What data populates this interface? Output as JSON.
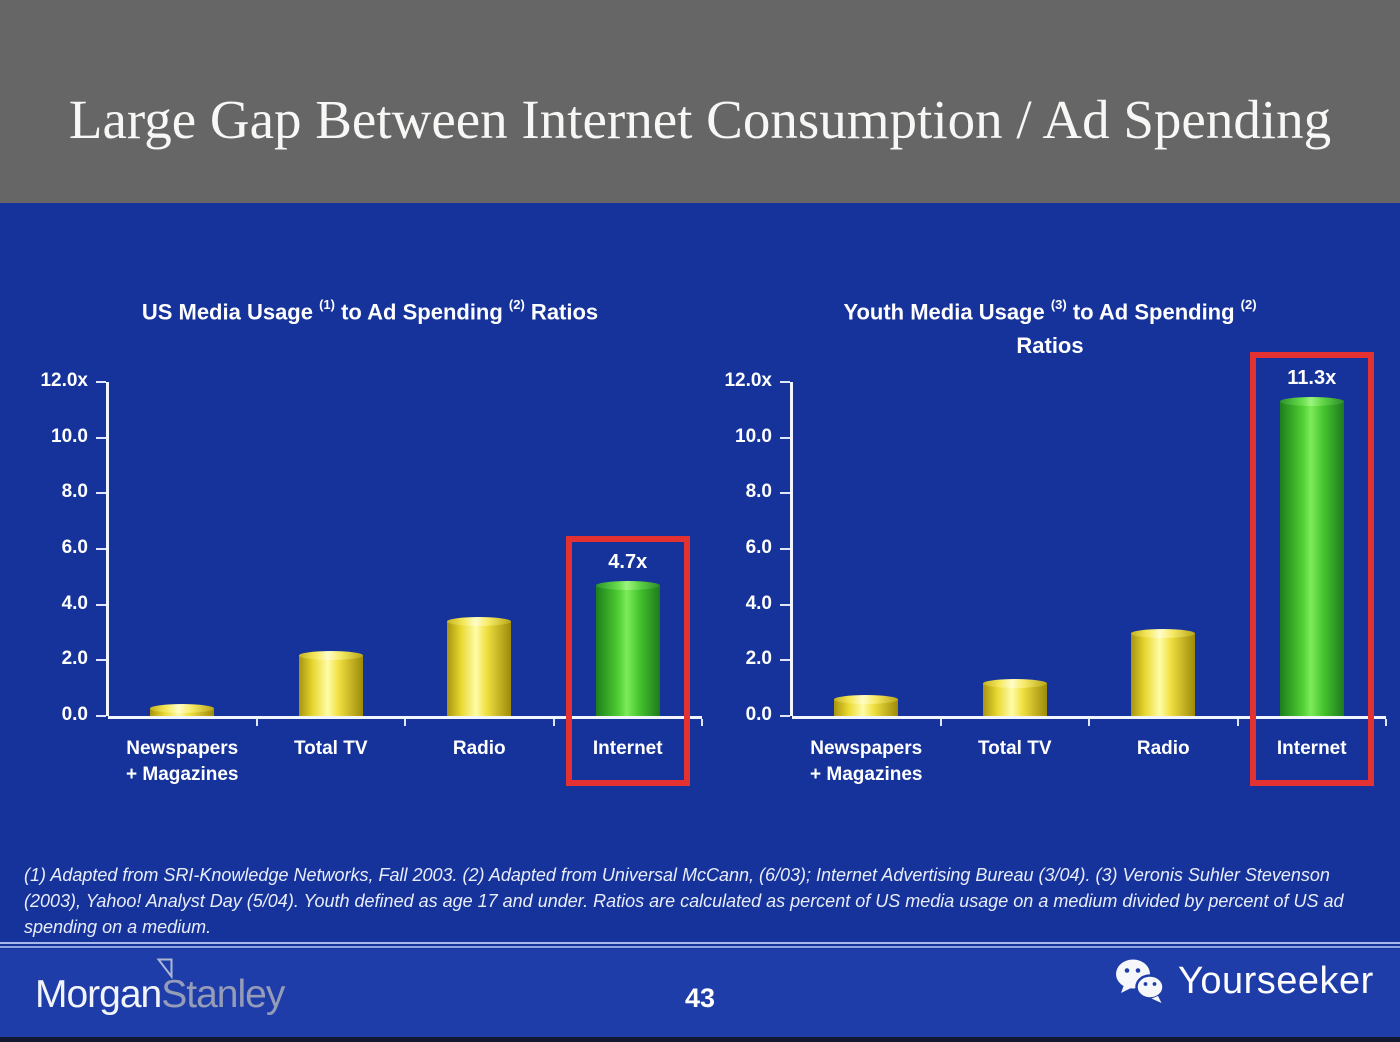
{
  "slide": {
    "title": "Large Gap Between Internet Consumption / Ad Spending",
    "page_number": "43"
  },
  "colors": {
    "header_bg": "#666666",
    "body_bg": "#16339b",
    "footer_bg": "#1e3da8",
    "bar_yellow": "#f0e040",
    "bar_green_highlight": "#4fce32",
    "highlight_red": "#e43131",
    "axis_white": "#f2f5fd"
  },
  "chart_data": [
    {
      "type": "bar",
      "title": "US Media Usage (1) to Ad Spending (2) Ratios",
      "title_segments": [
        {
          "t": "US Media Usage "
        },
        {
          "sup": "(1)"
        },
        {
          "t": " to Ad Spending "
        },
        {
          "sup": "(2)"
        },
        {
          "t": " Ratios"
        }
      ],
      "categories": [
        "Newspapers + Magazines",
        "Total TV",
        "Radio",
        "Internet"
      ],
      "category_label_lines": [
        [
          "Newspapers",
          "+ Magazines"
        ],
        [
          "Total TV"
        ],
        [
          "Radio"
        ],
        [
          "Internet"
        ]
      ],
      "values": [
        0.3,
        2.2,
        3.4,
        4.7
      ],
      "bar_labels": [
        "",
        "",
        "",
        "4.7x"
      ],
      "highlight_index": 3,
      "ylim": [
        0,
        12
      ],
      "grid": false,
      "legend": "none",
      "yticks": [
        {
          "label": "12.0x",
          "value": 12
        },
        {
          "label": "10.0",
          "value": 10
        },
        {
          "label": "8.0",
          "value": 8
        },
        {
          "label": "6.0",
          "value": 6
        },
        {
          "label": "4.0",
          "value": 4
        },
        {
          "label": "2.0",
          "value": 2
        },
        {
          "label": "0.0",
          "value": 0
        }
      ]
    },
    {
      "type": "bar",
      "title": "Youth Media Usage (3) to Ad Spending (2) Ratios",
      "title_segments": [
        {
          "t": "Youth Media Usage "
        },
        {
          "sup": "(3)"
        },
        {
          "t": " to Ad Spending "
        },
        {
          "sup": "(2)"
        },
        {
          "br": true
        },
        {
          "t": "Ratios"
        }
      ],
      "categories": [
        "Newspapers + Magazines",
        "Total TV",
        "Radio",
        "Internet"
      ],
      "category_label_lines": [
        [
          "Newspapers",
          "+ Magazines"
        ],
        [
          "Total TV"
        ],
        [
          "Radio"
        ],
        [
          "Internet"
        ]
      ],
      "values": [
        0.6,
        1.2,
        3.0,
        11.3
      ],
      "bar_labels": [
        "",
        "",
        "",
        "11.3x"
      ],
      "highlight_index": 3,
      "ylim": [
        0,
        12
      ],
      "grid": false,
      "legend": "none",
      "yticks": [
        {
          "label": "12.0x",
          "value": 12
        },
        {
          "label": "10.0",
          "value": 10
        },
        {
          "label": "8.0",
          "value": 8
        },
        {
          "label": "6.0",
          "value": 6
        },
        {
          "label": "4.0",
          "value": 4
        },
        {
          "label": "2.0",
          "value": 2
        },
        {
          "label": "0.0",
          "value": 0
        }
      ]
    }
  ],
  "footnote": "(1) Adapted from SRI-Knowledge Networks, Fall 2003.  (2) Adapted from Universal McCann, (6/03); Internet Advertising Bureau (3/04). (3) Veronis Suhler Stevenson (2003), Yahoo! Analyst Day (5/04).  Youth defined as age 17 and under.  Ratios are calculated as percent of US media usage on a medium divided by percent of US ad spending on a medium.",
  "footer": {
    "brand_part1": "Morgan",
    "brand_part2": "Stanley",
    "watermark": "Yourseeker"
  }
}
